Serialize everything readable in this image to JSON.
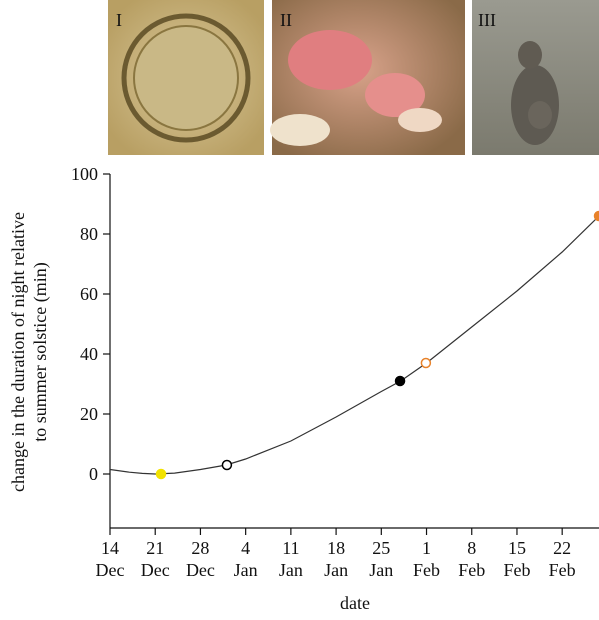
{
  "panels": [
    {
      "label": "I"
    },
    {
      "label": "II"
    },
    {
      "label": "III"
    }
  ],
  "chart_data": {
    "type": "line",
    "xlabel": "date",
    "ylabel": [
      "change in the duration of night relative",
      "to summer solstice (min)"
    ],
    "xlim": [
      0,
      75.7
    ],
    "ylim": [
      -18,
      100
    ],
    "xticks": [
      {
        "value": 0,
        "label": "14 Dec"
      },
      {
        "value": 7,
        "label": "21 Dec"
      },
      {
        "value": 14,
        "label": "28 Dec"
      },
      {
        "value": 21,
        "label": "4 Jan"
      },
      {
        "value": 28,
        "label": "11 Jan"
      },
      {
        "value": 35,
        "label": "18 Jan"
      },
      {
        "value": 42,
        "label": "25 Jan"
      },
      {
        "value": 49,
        "label": "1 Feb"
      },
      {
        "value": 56,
        "label": "8 Feb"
      },
      {
        "value": 63,
        "label": "15 Feb"
      },
      {
        "value": 70,
        "label": "22 Feb"
      }
    ],
    "yticks": [
      0,
      20,
      40,
      60,
      80,
      100
    ],
    "series": [
      {
        "color": "#333333",
        "x": [
          0,
          3,
          5,
          7,
          10,
          14,
          18,
          21,
          28,
          35,
          42,
          45,
          49,
          56,
          63,
          70,
          75.7
        ],
        "values": [
          1.5,
          0.6,
          0.2,
          0,
          0.3,
          1.5,
          3,
          5,
          11,
          19,
          27.5,
          31,
          37,
          49,
          61,
          74,
          86
        ]
      }
    ],
    "points": [
      {
        "x": 7.9,
        "y": 0,
        "color": "#f2e200",
        "filled": true
      },
      {
        "x": 18.1,
        "y": 3,
        "color": "#000000",
        "filled": false
      },
      {
        "x": 44.9,
        "y": 31,
        "color": "#000000",
        "filled": true
      },
      {
        "x": 48.9,
        "y": 37,
        "color": "#e8822a",
        "filled": false
      },
      {
        "x": 75.7,
        "y": 86,
        "color": "#e8822a",
        "filled": true
      }
    ]
  }
}
